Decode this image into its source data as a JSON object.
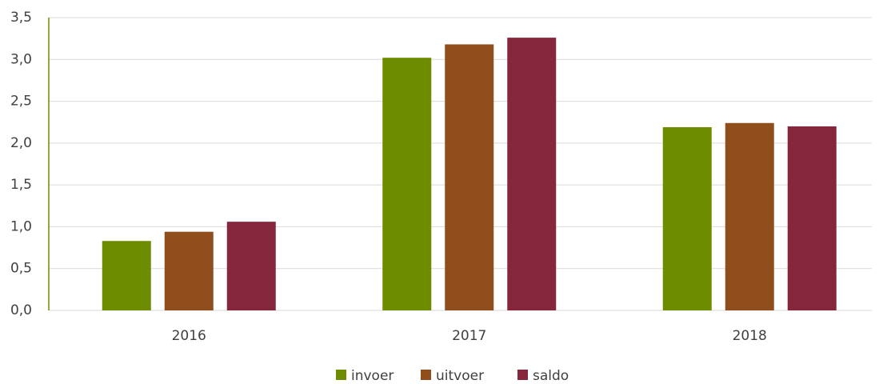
{
  "chart_data": {
    "type": "bar",
    "categories": [
      "2016",
      "2017",
      "2018"
    ],
    "series": [
      {
        "name": "invoer",
        "color": "#6e8c00",
        "values": [
          0.83,
          3.02,
          2.19
        ]
      },
      {
        "name": "uitvoer",
        "color": "#8f4e1b",
        "values": [
          0.94,
          3.18,
          2.24
        ]
      },
      {
        "name": "saldo",
        "color": "#86263c",
        "values": [
          1.06,
          3.26,
          2.2
        ]
      }
    ],
    "ylim": [
      0,
      3.5
    ],
    "yticks": [
      {
        "value": 0,
        "label": "0,0"
      },
      {
        "value": 0.5,
        "label": "0,5"
      },
      {
        "value": 1,
        "label": "1,0"
      },
      {
        "value": 1.5,
        "label": "1,5"
      },
      {
        "value": 2,
        "label": "2,0"
      },
      {
        "value": 2.5,
        "label": "2,5"
      },
      {
        "value": 3,
        "label": "3,0"
      },
      {
        "value": 3.5,
        "label": "3,5"
      }
    ],
    "grid": true,
    "legend": "bottom"
  }
}
